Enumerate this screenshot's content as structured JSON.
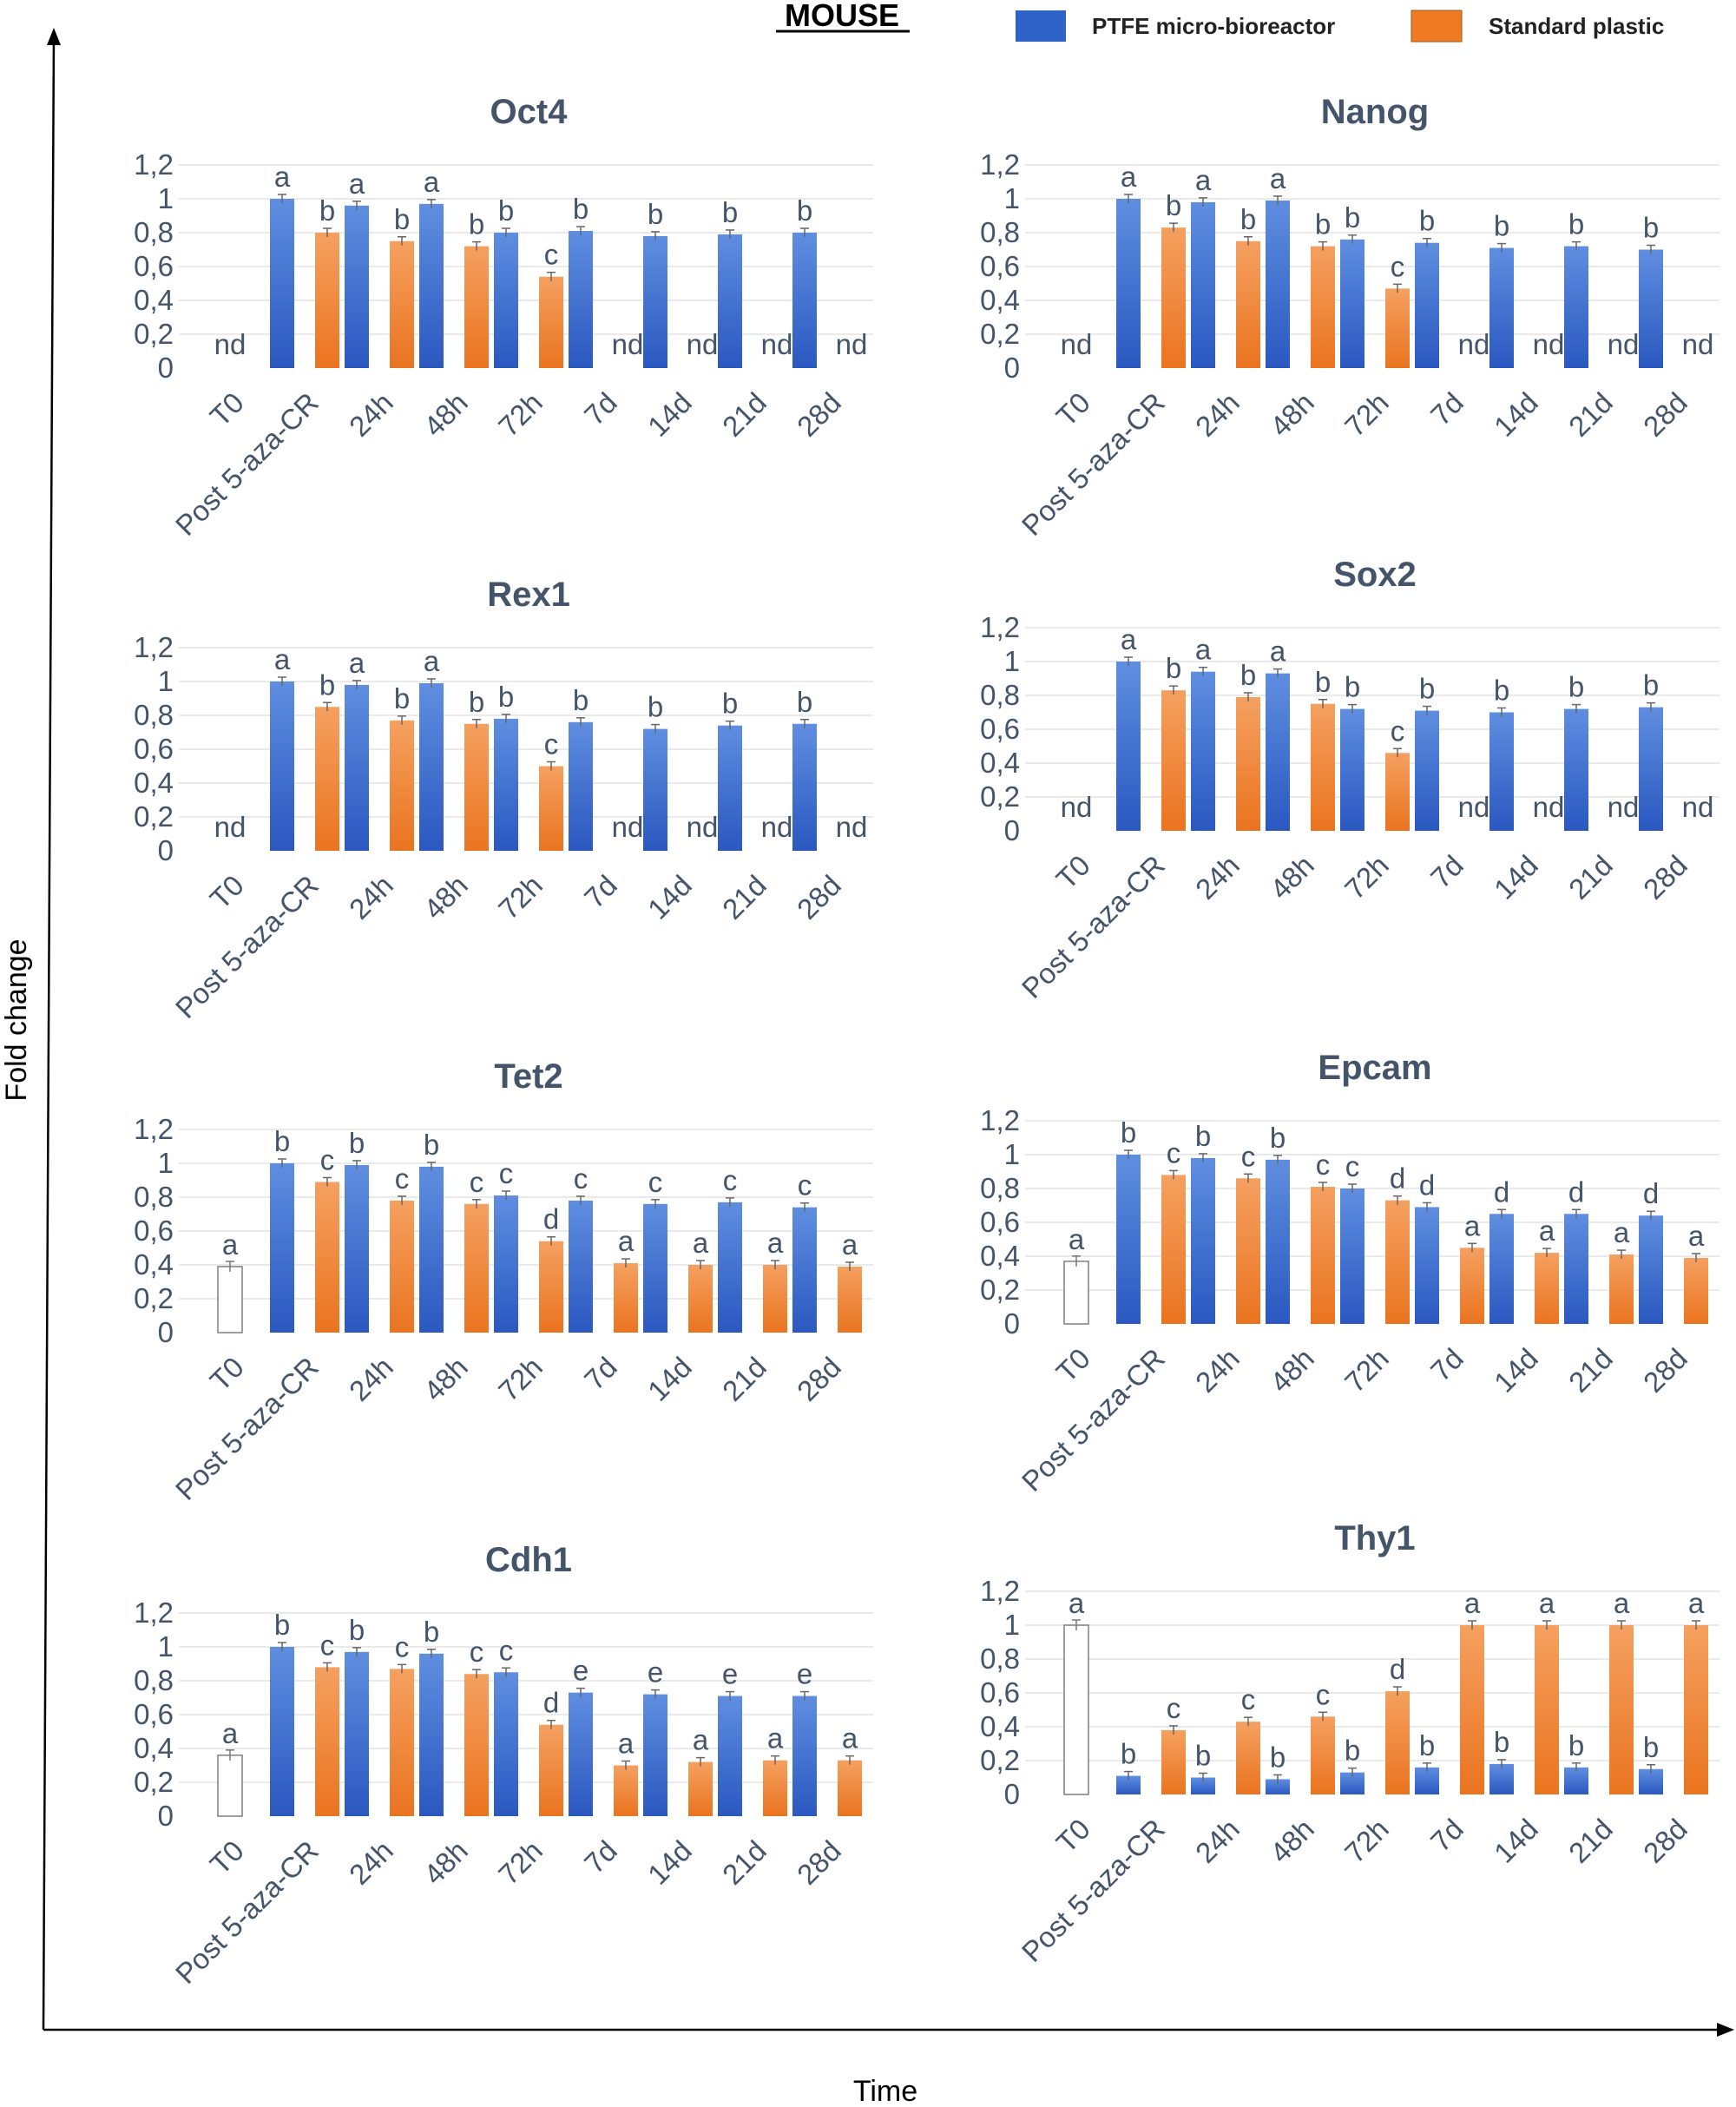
{
  "header": {
    "title": "MOUSE",
    "legend": [
      {
        "name": "PTFE micro-bioreactor",
        "color": "#2f63c8"
      },
      {
        "name": "Standard plastic",
        "color": "#f07a22"
      }
    ]
  },
  "axes": {
    "ylabel": "Fold change",
    "xlabel": "Time"
  },
  "chart_data": [
    {
      "type": "bar",
      "title": "Oct4",
      "categories": [
        "T0",
        "Post 5-aza-CR",
        "24h",
        "48h",
        "72h",
        "7d",
        "14d",
        "21d",
        "28d"
      ],
      "yticks": [
        "0",
        "0,2",
        "0,4",
        "0,6",
        "0,8",
        "1",
        "1,2"
      ],
      "ylim": [
        0,
        1.2
      ],
      "grid": true,
      "t0": {
        "value": null,
        "label": "nd"
      },
      "series": [
        {
          "name": "PTFE micro-bioreactor",
          "values": [
            null,
            1.0,
            0.96,
            0.97,
            0.8,
            0.81,
            0.78,
            0.79,
            0.8
          ],
          "labels": [
            "",
            "a",
            "a",
            "a",
            "b",
            "b",
            "b",
            "b",
            "b"
          ]
        },
        {
          "name": "Standard plastic",
          "values": [
            null,
            0.8,
            0.75,
            0.72,
            0.54,
            null,
            null,
            null,
            null
          ],
          "labels": [
            "",
            "b",
            "b",
            "b",
            "c",
            "nd",
            "nd",
            "nd",
            "nd"
          ]
        }
      ]
    },
    {
      "type": "bar",
      "title": "Nanog",
      "categories": [
        "T0",
        "Post 5-aza-CR",
        "24h",
        "48h",
        "72h",
        "7d",
        "14d",
        "21d",
        "28d"
      ],
      "yticks": [
        "0",
        "0,2",
        "0,4",
        "0,6",
        "0,8",
        "1",
        "1,2"
      ],
      "ylim": [
        0,
        1.2
      ],
      "grid": true,
      "t0": {
        "value": null,
        "label": "nd"
      },
      "series": [
        {
          "name": "PTFE micro-bioreactor",
          "values": [
            null,
            1.0,
            0.98,
            0.99,
            0.76,
            0.74,
            0.71,
            0.72,
            0.7
          ],
          "labels": [
            "",
            "a",
            "a",
            "a",
            "b",
            "b",
            "b",
            "b",
            "b"
          ]
        },
        {
          "name": "Standard plastic",
          "values": [
            null,
            0.83,
            0.75,
            0.72,
            0.47,
            null,
            null,
            null,
            null
          ],
          "labels": [
            "",
            "b",
            "b",
            "b",
            "c",
            "nd",
            "nd",
            "nd",
            "nd"
          ]
        }
      ]
    },
    {
      "type": "bar",
      "title": "Rex1",
      "categories": [
        "T0",
        "Post 5-aza-CR",
        "24h",
        "48h",
        "72h",
        "7d",
        "14d",
        "21d",
        "28d"
      ],
      "yticks": [
        "0",
        "0,2",
        "0,4",
        "0,6",
        "0,8",
        "1",
        "1,2"
      ],
      "ylim": [
        0,
        1.2
      ],
      "grid": true,
      "t0": {
        "value": null,
        "label": "nd"
      },
      "series": [
        {
          "name": "PTFE micro-bioreactor",
          "values": [
            null,
            1.0,
            0.98,
            0.99,
            0.78,
            0.76,
            0.72,
            0.74,
            0.75
          ],
          "labels": [
            "",
            "a",
            "a",
            "a",
            "b",
            "b",
            "b",
            "b",
            "b"
          ]
        },
        {
          "name": "Standard plastic",
          "values": [
            null,
            0.85,
            0.77,
            0.75,
            0.5,
            null,
            null,
            null,
            null
          ],
          "labels": [
            "",
            "b",
            "b",
            "b",
            "c",
            "nd",
            "nd",
            "nd",
            "nd"
          ]
        }
      ]
    },
    {
      "type": "bar",
      "title": "Sox2",
      "categories": [
        "T0",
        "Post 5-aza-CR",
        "24h",
        "48h",
        "72h",
        "7d",
        "14d",
        "21d",
        "28d"
      ],
      "yticks": [
        "0",
        "0,2",
        "0,4",
        "0,6",
        "0,8",
        "1",
        "1,2"
      ],
      "ylim": [
        0,
        1.2
      ],
      "grid": true,
      "t0": {
        "value": null,
        "label": "nd"
      },
      "series": [
        {
          "name": "PTFE micro-bioreactor",
          "values": [
            null,
            1.0,
            0.94,
            0.93,
            0.72,
            0.71,
            0.7,
            0.72,
            0.73
          ],
          "labels": [
            "",
            "a",
            "a",
            "a",
            "b",
            "b",
            "b",
            "b",
            "b"
          ]
        },
        {
          "name": "Standard plastic",
          "values": [
            null,
            0.83,
            0.79,
            0.75,
            0.46,
            null,
            null,
            null,
            null
          ],
          "labels": [
            "",
            "b",
            "b",
            "b",
            "c",
            "nd",
            "nd",
            "nd",
            "nd"
          ]
        }
      ]
    },
    {
      "type": "bar",
      "title": "Tet2",
      "categories": [
        "T0",
        "Post 5-aza-CR",
        "24h",
        "48h",
        "72h",
        "7d",
        "14d",
        "21d",
        "28d"
      ],
      "yticks": [
        "0",
        "0,2",
        "0,4",
        "0,6",
        "0,8",
        "1",
        "1,2"
      ],
      "ylim": [
        0,
        1.2
      ],
      "grid": true,
      "t0": {
        "value": 0.39,
        "label": "a"
      },
      "series": [
        {
          "name": "PTFE micro-bioreactor",
          "values": [
            null,
            1.0,
            0.99,
            0.98,
            0.81,
            0.78,
            0.76,
            0.77,
            0.74
          ],
          "labels": [
            "",
            "b",
            "b",
            "b",
            "c",
            "c",
            "c",
            "c",
            "c"
          ]
        },
        {
          "name": "Standard plastic",
          "values": [
            null,
            0.89,
            0.78,
            0.76,
            0.54,
            0.41,
            0.4,
            0.4,
            0.39
          ],
          "labels": [
            "",
            "c",
            "c",
            "c",
            "d",
            "a",
            "a",
            "a",
            "a"
          ]
        }
      ]
    },
    {
      "type": "bar",
      "title": "Epcam",
      "categories": [
        "T0",
        "Post 5-aza-CR",
        "24h",
        "48h",
        "72h",
        "7d",
        "14d",
        "21d",
        "28d"
      ],
      "yticks": [
        "0",
        "0,2",
        "0,4",
        "0,6",
        "0,8",
        "1",
        "1,2"
      ],
      "ylim": [
        0,
        1.2
      ],
      "grid": true,
      "t0": {
        "value": 0.37,
        "label": "a"
      },
      "series": [
        {
          "name": "PTFE micro-bioreactor",
          "values": [
            null,
            1.0,
            0.98,
            0.97,
            0.8,
            0.69,
            0.65,
            0.65,
            0.64
          ],
          "labels": [
            "",
            "b",
            "b",
            "b",
            "c",
            "d",
            "d",
            "d",
            "d"
          ]
        },
        {
          "name": "Standard plastic",
          "values": [
            null,
            0.88,
            0.86,
            0.81,
            0.73,
            0.45,
            0.42,
            0.41,
            0.39
          ],
          "labels": [
            "",
            "c",
            "c",
            "c",
            "d",
            "a",
            "a",
            "a",
            "a"
          ]
        }
      ]
    },
    {
      "type": "bar",
      "title": "Cdh1",
      "categories": [
        "T0",
        "Post 5-aza-CR",
        "24h",
        "48h",
        "72h",
        "7d",
        "14d",
        "21d",
        "28d"
      ],
      "yticks": [
        "0",
        "0,2",
        "0,4",
        "0,6",
        "0,8",
        "1",
        "1,2"
      ],
      "ylim": [
        0,
        1.2
      ],
      "grid": true,
      "t0": {
        "value": 0.36,
        "label": "a"
      },
      "series": [
        {
          "name": "PTFE micro-bioreactor",
          "values": [
            null,
            1.0,
            0.97,
            0.96,
            0.85,
            0.73,
            0.72,
            0.71,
            0.71
          ],
          "labels": [
            "",
            "b",
            "b",
            "b",
            "c",
            "e",
            "e",
            "e",
            "e"
          ]
        },
        {
          "name": "Standard plastic",
          "values": [
            null,
            0.88,
            0.87,
            0.84,
            0.54,
            0.3,
            0.32,
            0.33,
            0.33
          ],
          "labels": [
            "",
            "c",
            "c",
            "c",
            "d",
            "a",
            "a",
            "a",
            "a"
          ]
        }
      ]
    },
    {
      "type": "bar",
      "title": "Thy1",
      "categories": [
        "T0",
        "Post 5-aza-CR",
        "24h",
        "48h",
        "72h",
        "7d",
        "14d",
        "21d",
        "28d"
      ],
      "yticks": [
        "0",
        "0,2",
        "0,4",
        "0,6",
        "0,8",
        "1",
        "1,2"
      ],
      "ylim": [
        0,
        1.2
      ],
      "grid": true,
      "t0": {
        "value": 1.0,
        "label": "a"
      },
      "series": [
        {
          "name": "PTFE micro-bioreactor",
          "values": [
            null,
            0.11,
            0.1,
            0.09,
            0.13,
            0.16,
            0.18,
            0.16,
            0.15
          ],
          "labels": [
            "",
            "b",
            "b",
            "b",
            "b",
            "b",
            "b",
            "b",
            "b"
          ]
        },
        {
          "name": "Standard plastic",
          "values": [
            null,
            0.38,
            0.43,
            0.46,
            0.61,
            1.0,
            1.0,
            1.0,
            1.0
          ],
          "labels": [
            "",
            "c",
            "c",
            "c",
            "d",
            "a",
            "a",
            "a",
            "a"
          ]
        }
      ]
    }
  ]
}
